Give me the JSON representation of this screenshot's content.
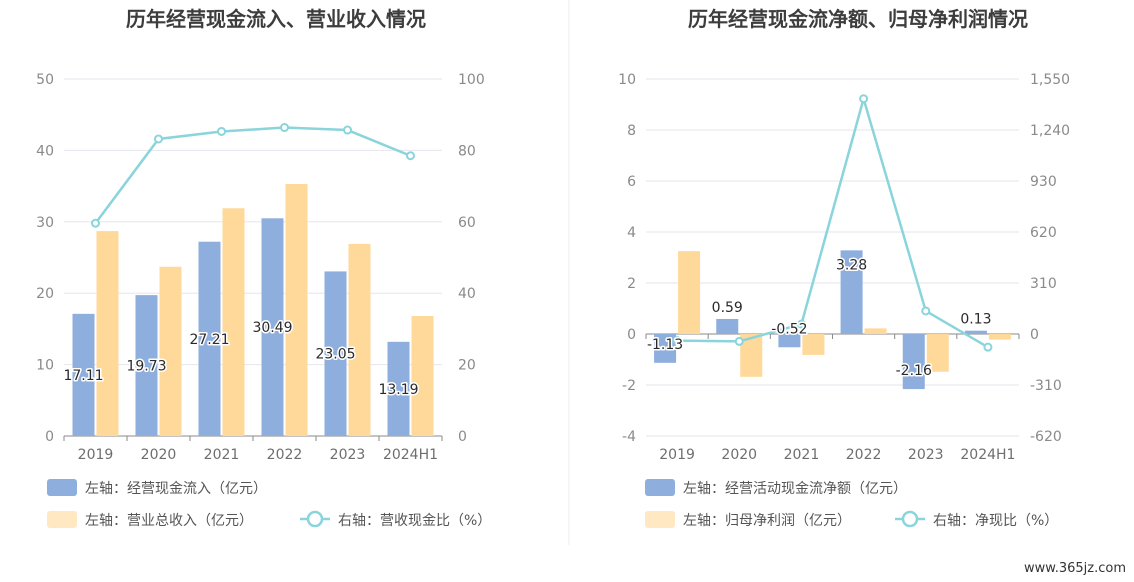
{
  "colors": {
    "bar_left": "#8eaedd",
    "bar_right": "#ffd99a",
    "line": "#8ad4dc",
    "grid": "#e6e6ee",
    "axis": "#8a8a8a"
  },
  "watermark": "www.365jz.com",
  "chart_data": [
    {
      "type": "bar",
      "title": "历年经营现金流入、营业收入情况",
      "categories": [
        "2019",
        "2020",
        "2021",
        "2022",
        "2023",
        "2024H1"
      ],
      "left_axis": {
        "min": 0,
        "max": 50,
        "ticks": [
          "0",
          "10",
          "20",
          "30",
          "40",
          "50"
        ]
      },
      "right_axis": {
        "min": 0,
        "max": 100,
        "ticks": [
          "0",
          "20",
          "40",
          "60",
          "80",
          "100"
        ]
      },
      "series": [
        {
          "name": "左轴：经营现金流入（亿元）",
          "kind": "bar",
          "axis": "left",
          "values": [
            17.11,
            19.73,
            27.21,
            30.49,
            23.05,
            13.19
          ],
          "labels": [
            "17.11",
            "19.73",
            "27.21",
            "30.49",
            "23.05",
            "13.19"
          ]
        },
        {
          "name": "左轴：营业总收入（亿元）",
          "kind": "bar",
          "axis": "left",
          "values": [
            28.7,
            23.7,
            31.9,
            35.3,
            26.9,
            16.8
          ]
        },
        {
          "name": "右轴：营收现金比（%）",
          "kind": "line",
          "axis": "right",
          "values": [
            59.6,
            83.2,
            85.3,
            86.4,
            85.7,
            78.5
          ]
        }
      ]
    },
    {
      "type": "bar",
      "title": "历年经营现金流净额、归母净利润情况",
      "categories": [
        "2019",
        "2020",
        "2021",
        "2022",
        "2023",
        "2024H1"
      ],
      "left_axis": {
        "min": -4,
        "max": 10,
        "ticks": [
          "-4",
          "-2",
          "0",
          "2",
          "4",
          "6",
          "8",
          "10"
        ]
      },
      "right_axis": {
        "min": -620,
        "max": 1550,
        "ticks": [
          "-620",
          "-310",
          "0",
          "310",
          "620",
          "930",
          "1,240",
          "1,550"
        ]
      },
      "series": [
        {
          "name": "左轴：经营活动现金流净额（亿元）",
          "kind": "bar",
          "axis": "left",
          "values": [
            -1.13,
            0.59,
            -0.52,
            3.28,
            -2.16,
            0.13
          ],
          "labels": [
            "-1.13",
            "0.59",
            "-0.52",
            "3.28",
            "-2.16",
            "0.13"
          ]
        },
        {
          "name": "左轴：归母净利润（亿元）",
          "kind": "bar",
          "axis": "left",
          "values": [
            3.25,
            -1.68,
            -0.82,
            0.22,
            -1.48,
            -0.22
          ]
        },
        {
          "name": "右轴：净现比（%）",
          "kind": "line",
          "axis": "right",
          "values": [
            -40,
            -45,
            60,
            1430,
            140,
            -80
          ]
        }
      ]
    }
  ]
}
